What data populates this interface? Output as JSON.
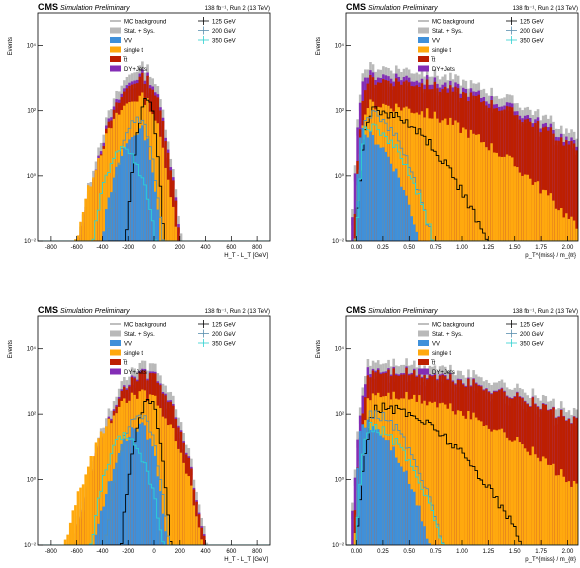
{
  "colors": {
    "mc_background": "#7f7f7f",
    "stat_sys": "#b9b9b9",
    "VV": "#3f90da",
    "single_t": "#ffa90e",
    "ttbar": "#bd1f01",
    "dy_jets": "#832db6",
    "sig_125": "#000000",
    "sig_200": "#5a8fae",
    "sig_350": "#2fd1d1"
  },
  "chart_data": [
    {
      "type": "area",
      "panel": "top-left",
      "experiment": "CMS",
      "subtitle": "Simulation Preliminary",
      "lumi_label": "138 fb⁻¹, Run 2 (13 TeV)",
      "xlabel": "H_T - L_T [GeV]",
      "ylabel": "Events",
      "log_y": true,
      "xlim": [
        -900,
        900
      ],
      "ylim_exp": [
        -2,
        5
      ],
      "x_ticks": [
        "-800",
        "-600",
        "-400",
        "-200",
        "0",
        "200",
        "400",
        "600",
        "800"
      ],
      "y_ticks": [
        "10⁻²",
        "10⁰",
        "10²",
        "10⁴"
      ],
      "legend": [
        "MC background",
        "Stat. + Sys.",
        "VV",
        "single t",
        "t̅t",
        "DY+Jets",
        "125 GeV",
        "200 GeV",
        "350 GeV"
      ],
      "series": [
        {
          "name": "VV",
          "peak_x": -100,
          "peak_log": 1.4,
          "width_left": 250,
          "width_right": 120
        },
        {
          "name": "single t",
          "peak_x": -100,
          "peak_log": 2.4,
          "width_left": 360,
          "width_right": 200
        },
        {
          "name": "t̅t",
          "peak_x": -80,
          "peak_log": 3.0,
          "width_left": 330,
          "width_right": 190
        },
        {
          "name": "DY+Jets",
          "peak_x": -80,
          "peak_log": 3.1,
          "width_left": 330,
          "width_right": 190
        },
        {
          "name": "125 GeV",
          "peak_x": -50,
          "peak_log": 2.3,
          "width_left": 120,
          "width_right": 90
        },
        {
          "name": "200 GeV",
          "peak_x": -130,
          "peak_log": 1.8,
          "width_left": 180,
          "width_right": 150
        },
        {
          "name": "350 GeV",
          "peak_x": -240,
          "peak_log": 0.9,
          "width_left": 200,
          "width_right": 220
        }
      ]
    },
    {
      "type": "area",
      "panel": "top-right",
      "experiment": "CMS",
      "subtitle": "Simulation Preliminary",
      "lumi_label": "138 fb⁻¹, Run 2 (13 TeV)",
      "xlabel": "p_T^{miss} / m_{ℓℓ}",
      "ylabel": "Events",
      "log_y": true,
      "xlim": [
        -0.1,
        2.1
      ],
      "ylim_exp": [
        -2,
        5
      ],
      "x_ticks": [
        "0.00",
        "0.25",
        "0.50",
        "0.75",
        "1.00",
        "1.25",
        "1.50",
        "1.75",
        "2.00"
      ],
      "y_ticks": [
        "10⁻²",
        "10⁰",
        "10²",
        "10⁴"
      ],
      "legend": [
        "MC background",
        "Stat. + Sys.",
        "VV",
        "single t",
        "t̅t",
        "DY+Jets",
        "125 GeV",
        "200 GeV",
        "350 GeV"
      ],
      "series": [
        {
          "name": "VV",
          "peak_x": 0.05,
          "peak_log": 1.3,
          "width_left": 0.05,
          "width_right": 0.45
        },
        {
          "name": "single t",
          "peak_x": 0.12,
          "peak_log": 2.2,
          "width_left": 0.1,
          "width_right": 1.5
        },
        {
          "name": "t̅t",
          "peak_x": 0.12,
          "peak_log": 2.95,
          "width_left": 0.1,
          "width_right": 2.0
        },
        {
          "name": "DY+Jets",
          "peak_x": 0.1,
          "peak_log": 3.1,
          "width_left": 0.1,
          "width_right": 2.0
        },
        {
          "name": "125 GeV",
          "peak_x": 0.15,
          "peak_log": 2.0,
          "width_left": 0.12,
          "width_right": 0.8
        },
        {
          "name": "200 GeV",
          "peak_x": 0.12,
          "peak_log": 1.9,
          "width_left": 0.1,
          "width_right": 0.45
        },
        {
          "name": "350 GeV",
          "peak_x": 0.1,
          "peak_log": 1.5,
          "width_left": 0.08,
          "width_right": 0.5
        }
      ]
    },
    {
      "type": "area",
      "panel": "bottom-left",
      "experiment": "CMS",
      "subtitle": "Simulation Preliminary",
      "lumi_label": "138 fb⁻¹, Run 2 (13 TeV)",
      "xlabel": "H_T - L_T [GeV]",
      "ylabel": "Events",
      "log_y": true,
      "xlim": [
        -900,
        900
      ],
      "ylim_exp": [
        -2,
        5
      ],
      "x_ticks": [
        "-800",
        "-600",
        "-400",
        "-200",
        "0",
        "200",
        "400",
        "600",
        "800"
      ],
      "y_ticks": [
        "10⁻²",
        "10⁰",
        "10²",
        "10⁴"
      ],
      "legend": [
        "MC background",
        "Stat. + Sys.",
        "VV",
        "single t",
        "t̅t",
        "DY+Jets",
        "125 GeV",
        "200 GeV",
        "350 GeV"
      ],
      "series": [
        {
          "name": "VV",
          "peak_x": -100,
          "peak_log": 1.6,
          "width_left": 280,
          "width_right": 160
        },
        {
          "name": "single t",
          "peak_x": -90,
          "peak_log": 2.6,
          "width_left": 420,
          "width_right": 330
        },
        {
          "name": "t̅t",
          "peak_x": -60,
          "peak_log": 3.2,
          "width_left": 360,
          "width_right": 300
        },
        {
          "name": "DY+Jets",
          "peak_x": -60,
          "peak_log": 3.25,
          "width_left": 360,
          "width_right": 300
        },
        {
          "name": "125 GeV",
          "peak_x": -40,
          "peak_log": 2.4,
          "width_left": 150,
          "width_right": 120
        },
        {
          "name": "200 GeV",
          "peak_x": -110,
          "peak_log": 2.0,
          "width_left": 200,
          "width_right": 170
        },
        {
          "name": "350 GeV",
          "peak_x": -220,
          "peak_log": 1.3,
          "width_left": 220,
          "width_right": 240
        }
      ]
    },
    {
      "type": "area",
      "panel": "bottom-right",
      "experiment": "CMS",
      "subtitle": "Simulation Preliminary",
      "lumi_label": "138 fb⁻¹, Run 2 (13 TeV)",
      "xlabel": "p_T^{miss} / m_{ℓℓ}",
      "ylabel": "Events",
      "log_y": true,
      "xlim": [
        -0.1,
        2.1
      ],
      "ylim_exp": [
        -2,
        5
      ],
      "x_ticks": [
        "0.00",
        "0.25",
        "0.50",
        "0.75",
        "1.00",
        "1.25",
        "1.50",
        "1.75",
        "2.00"
      ],
      "y_ticks": [
        "10⁻²",
        "10⁰",
        "10²",
        "10⁴"
      ],
      "legend": [
        "MC background",
        "Stat. + Sys.",
        "VV",
        "single t",
        "t̅t",
        "DY+Jets",
        "125 GeV",
        "200 GeV",
        "350 GeV"
      ],
      "series": [
        {
          "name": "VV",
          "peak_x": 0.05,
          "peak_log": 1.7,
          "width_left": 0.05,
          "width_right": 0.5
        },
        {
          "name": "single t",
          "peak_x": 0.15,
          "peak_log": 2.6,
          "width_left": 0.12,
          "width_right": 1.7
        },
        {
          "name": "t̅t",
          "peak_x": 0.15,
          "peak_log": 3.3,
          "width_left": 0.12,
          "width_right": 2.3
        },
        {
          "name": "DY+Jets",
          "peak_x": 0.13,
          "peak_log": 3.35,
          "width_left": 0.12,
          "width_right": 2.3
        },
        {
          "name": "125 GeV",
          "peak_x": 0.2,
          "peak_log": 2.2,
          "width_left": 0.15,
          "width_right": 1.0
        },
        {
          "name": "200 GeV",
          "peak_x": 0.15,
          "peak_log": 2.0,
          "width_left": 0.12,
          "width_right": 0.5
        },
        {
          "name": "350 GeV",
          "peak_x": 0.12,
          "peak_log": 1.6,
          "width_left": 0.1,
          "width_right": 0.55
        }
      ]
    }
  ]
}
